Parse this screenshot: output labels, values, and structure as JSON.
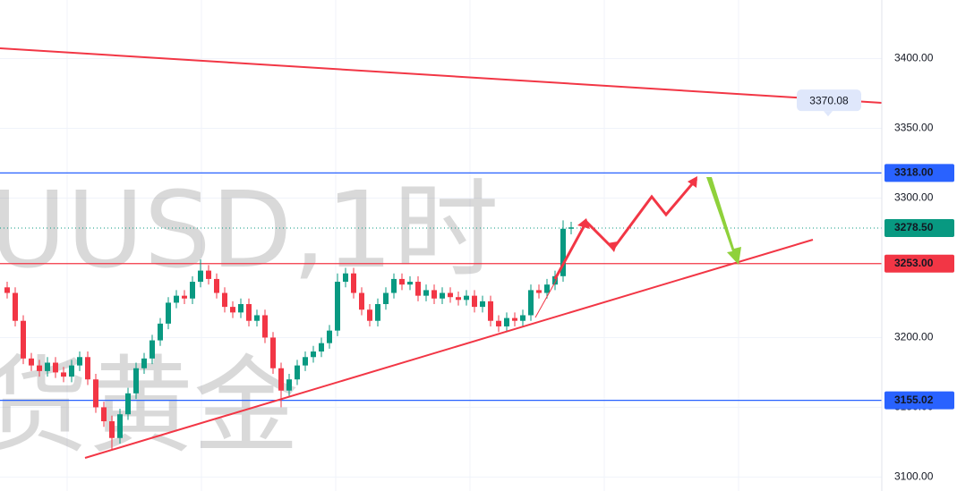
{
  "chart_data": {
    "type": "candlestick",
    "watermark": [
      "UUSD,1时",
      "货黄金"
    ],
    "open": [
      3236,
      3232,
      3212,
      3185,
      3180,
      3176,
      3182,
      3175,
      3172,
      3180,
      3186,
      3170,
      3150,
      3140,
      3128,
      3145,
      3160,
      3178,
      3185,
      3198,
      3210,
      3225,
      3230,
      3228,
      3240,
      3248,
      3242,
      3232,
      3222,
      3218,
      3224,
      3212,
      3216,
      3200,
      3178,
      3162,
      3170,
      3180,
      3186,
      3190,
      3196,
      3205,
      3240,
      3246,
      3232,
      3220,
      3212,
      3224,
      3232,
      3242,
      3238,
      3240,
      3230,
      3234,
      3228,
      3232,
      3229,
      3227,
      3230,
      3222,
      3226,
      3212,
      3208,
      3214,
      3212,
      3216,
      3234,
      3232,
      3238,
      3244,
      3278
    ],
    "high": [
      3240,
      3236,
      3216,
      3189,
      3184,
      3186,
      3186,
      3179,
      3184,
      3190,
      3190,
      3174,
      3154,
      3144,
      3149,
      3164,
      3182,
      3189,
      3202,
      3214,
      3229,
      3234,
      3234,
      3244,
      3256,
      3252,
      3246,
      3236,
      3226,
      3228,
      3228,
      3220,
      3220,
      3204,
      3182,
      3174,
      3184,
      3190,
      3194,
      3200,
      3209,
      3246,
      3250,
      3250,
      3236,
      3224,
      3228,
      3236,
      3246,
      3246,
      3244,
      3244,
      3238,
      3238,
      3236,
      3236,
      3233,
      3234,
      3234,
      3230,
      3230,
      3216,
      3218,
      3218,
      3220,
      3238,
      3238,
      3242,
      3248,
      3284,
      3283
    ],
    "low": [
      3228,
      3208,
      3181,
      3176,
      3172,
      3172,
      3171,
      3168,
      3168,
      3176,
      3166,
      3146,
      3136,
      3120,
      3124,
      3141,
      3156,
      3174,
      3181,
      3194,
      3206,
      3221,
      3224,
      3224,
      3236,
      3238,
      3228,
      3218,
      3214,
      3214,
      3208,
      3208,
      3196,
      3174,
      3150,
      3158,
      3166,
      3176,
      3182,
      3186,
      3192,
      3201,
      3236,
      3228,
      3216,
      3208,
      3208,
      3220,
      3228,
      3234,
      3234,
      3226,
      3226,
      3224,
      3224,
      3225,
      3223,
      3223,
      3218,
      3218,
      3208,
      3204,
      3204,
      3208,
      3208,
      3212,
      3228,
      3228,
      3234,
      3240,
      3274
    ],
    "close": [
      3232,
      3212,
      3185,
      3180,
      3176,
      3182,
      3175,
      3172,
      3180,
      3186,
      3170,
      3150,
      3140,
      3128,
      3145,
      3160,
      3178,
      3185,
      3198,
      3210,
      3225,
      3230,
      3228,
      3240,
      3248,
      3242,
      3232,
      3222,
      3218,
      3224,
      3212,
      3216,
      3200,
      3178,
      3162,
      3170,
      3180,
      3186,
      3190,
      3196,
      3205,
      3240,
      3246,
      3232,
      3220,
      3212,
      3224,
      3232,
      3242,
      3238,
      3240,
      3230,
      3234,
      3228,
      3232,
      3229,
      3227,
      3230,
      3222,
      3226,
      3212,
      3208,
      3214,
      3212,
      3216,
      3234,
      3232,
      3238,
      3244,
      3278,
      3279
    ],
    "up_color": "#089981",
    "down_color": "#f23645",
    "ylim": [
      3090,
      3442
    ],
    "yticks": [
      {
        "value": 3100,
        "label": "3100.00"
      },
      {
        "value": 3150,
        "label": "3150.00"
      },
      {
        "value": 3200,
        "label": "3200.00"
      },
      {
        "value": 3300,
        "label": "3300.00"
      },
      {
        "value": 3350,
        "label": "3350.00"
      },
      {
        "value": 3400,
        "label": "3400.00"
      }
    ],
    "levels": [
      {
        "value": 3318,
        "label": "3318.00",
        "color": "#2962ff",
        "style": "solid"
      },
      {
        "value": 3278.5,
        "label": "3278.50",
        "color": "#089981",
        "style": "dotted"
      },
      {
        "value": 3253,
        "label": "3253.00",
        "color": "#f23645",
        "style": "solid"
      },
      {
        "value": 3155.02,
        "label": "3155.02",
        "color": "#2962ff",
        "style": "solid"
      }
    ],
    "annotation": {
      "value": 3370.08,
      "label": "3370.08"
    }
  }
}
